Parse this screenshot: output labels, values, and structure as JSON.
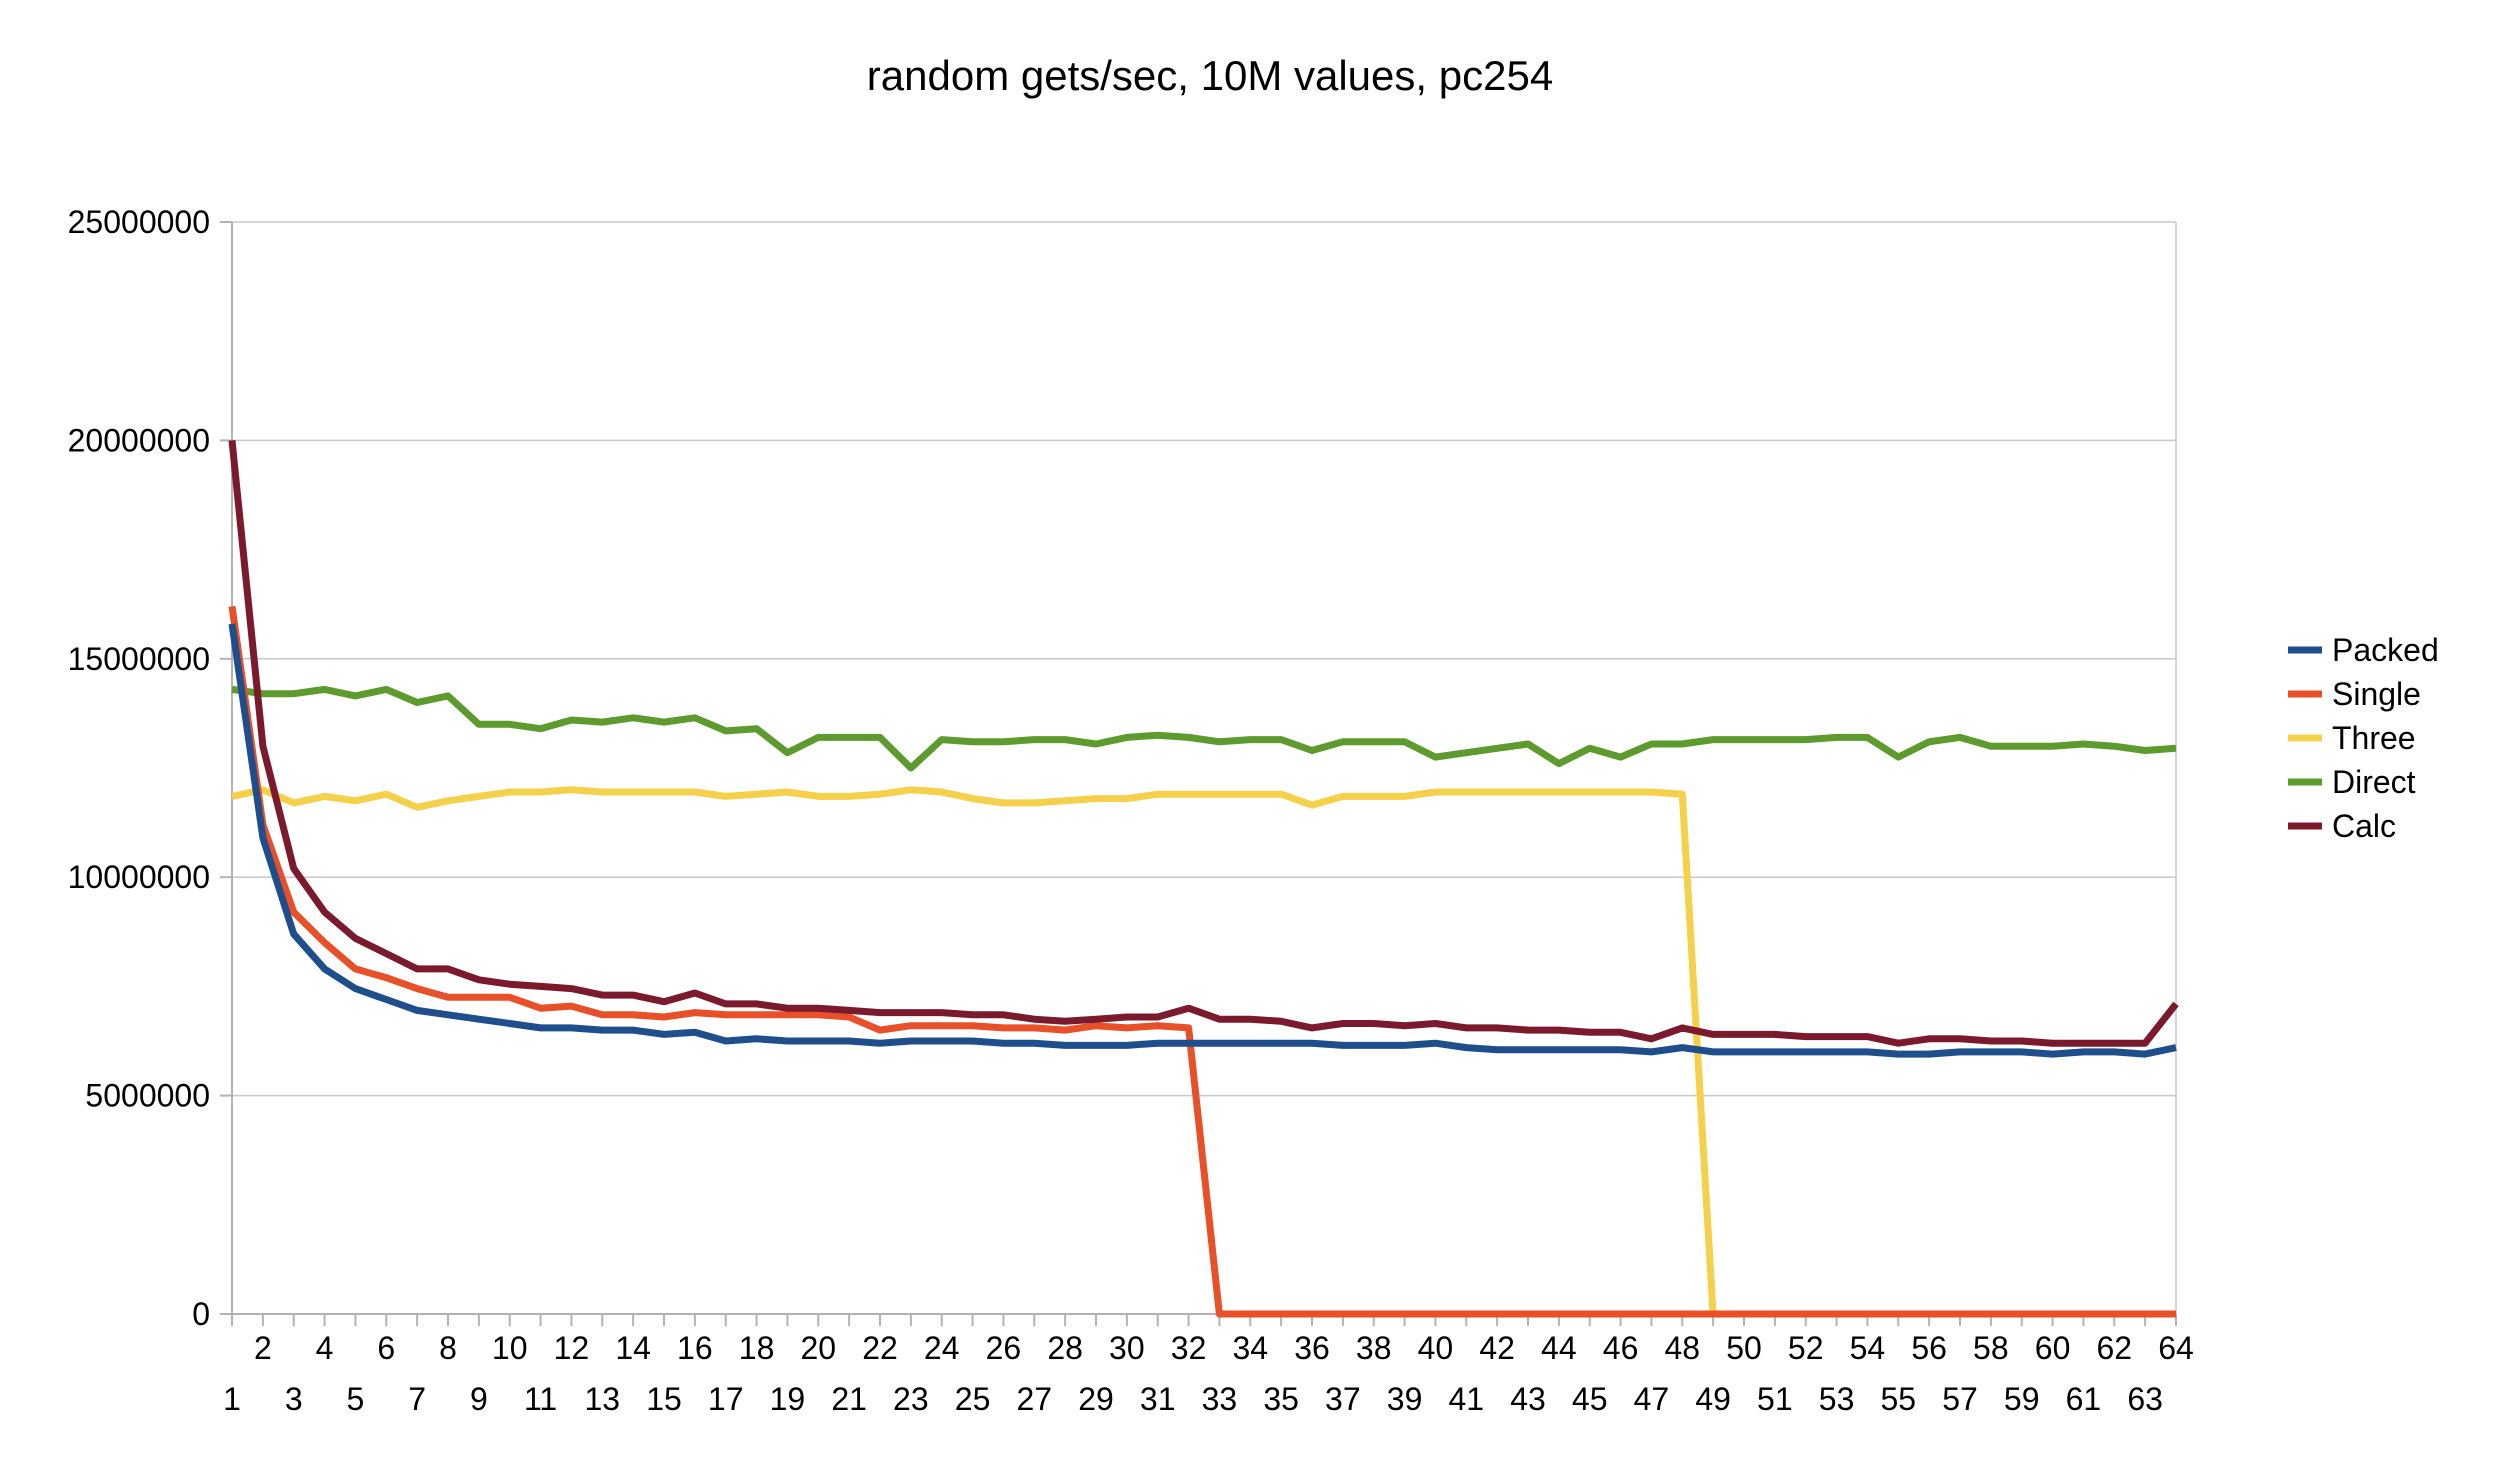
{
  "chart_data": {
    "type": "line",
    "title": "random gets/sec, 10M values, pc254",
    "xlabel": "",
    "ylabel": "",
    "ylim": [
      0,
      25000000
    ],
    "yticks": [
      "0",
      "5000000",
      "10000000",
      "15000000",
      "20000000",
      "25000000"
    ],
    "grid": true,
    "legend_position": "right",
    "x": [
      1,
      2,
      3,
      4,
      5,
      6,
      7,
      8,
      9,
      10,
      11,
      12,
      13,
      14,
      15,
      16,
      17,
      18,
      19,
      20,
      21,
      22,
      23,
      24,
      25,
      26,
      27,
      28,
      29,
      30,
      31,
      32,
      33,
      34,
      35,
      36,
      37,
      38,
      39,
      40,
      41,
      42,
      43,
      44,
      45,
      46,
      47,
      48,
      49,
      50,
      51,
      52,
      53,
      54,
      55,
      56,
      57,
      58,
      59,
      60,
      61,
      62,
      63,
      64
    ],
    "series": [
      {
        "name": "Packed",
        "color": "#1f4e8c",
        "values": [
          15800000,
          10900000,
          8700000,
          7900000,
          7450000,
          7200000,
          6950000,
          6850000,
          6750000,
          6650000,
          6550000,
          6550000,
          6500000,
          6500000,
          6400000,
          6450000,
          6250000,
          6300000,
          6250000,
          6250000,
          6250000,
          6200000,
          6250000,
          6250000,
          6250000,
          6200000,
          6200000,
          6150000,
          6150000,
          6150000,
          6200000,
          6200000,
          6200000,
          6200000,
          6200000,
          6200000,
          6150000,
          6150000,
          6150000,
          6200000,
          6100000,
          6050000,
          6050000,
          6050000,
          6050000,
          6050000,
          6000000,
          6100000,
          6000000,
          6000000,
          6000000,
          6000000,
          6000000,
          6000000,
          5950000,
          5950000,
          6000000,
          6000000,
          6000000,
          5950000,
          6000000,
          6000000,
          5950000,
          6100000
        ]
      },
      {
        "name": "Single",
        "color": "#e8502a",
        "values": [
          16200000,
          11200000,
          9200000,
          8500000,
          7900000,
          7700000,
          7450000,
          7250000,
          7250000,
          7250000,
          7000000,
          7050000,
          6850000,
          6850000,
          6800000,
          6900000,
          6850000,
          6850000,
          6850000,
          6850000,
          6800000,
          6500000,
          6600000,
          6600000,
          6600000,
          6550000,
          6550000,
          6500000,
          6600000,
          6550000,
          6600000,
          6550000,
          0,
          0,
          0,
          0,
          0,
          0,
          0,
          0,
          0,
          0,
          0,
          0,
          0,
          0,
          0,
          0,
          0,
          0,
          0,
          0,
          0,
          0,
          0,
          0,
          0,
          0,
          0,
          0,
          0,
          0,
          0,
          0
        ]
      },
      {
        "name": "Three",
        "color": "#f5d04a",
        "values": [
          11850000,
          12000000,
          11700000,
          11850000,
          11750000,
          11900000,
          11600000,
          11750000,
          11850000,
          11950000,
          11950000,
          12000000,
          11950000,
          11950000,
          11950000,
          11950000,
          11850000,
          11900000,
          11950000,
          11850000,
          11850000,
          11900000,
          12000000,
          11950000,
          11800000,
          11700000,
          11700000,
          11750000,
          11800000,
          11800000,
          11900000,
          11900000,
          11900000,
          11900000,
          11900000,
          11650000,
          11850000,
          11850000,
          11850000,
          11950000,
          11950000,
          11950000,
          11950000,
          11950000,
          11950000,
          11950000,
          11950000,
          11900000,
          0,
          0,
          0,
          0,
          0,
          0,
          0,
          0,
          0,
          0,
          0,
          0,
          0,
          0,
          0,
          0
        ]
      },
      {
        "name": "Direct",
        "color": "#5e9b2e",
        "values": [
          14300000,
          14200000,
          14200000,
          14300000,
          14150000,
          14300000,
          14000000,
          14150000,
          13500000,
          13500000,
          13400000,
          13600000,
          13550000,
          13650000,
          13550000,
          13650000,
          13350000,
          13400000,
          12850000,
          13200000,
          13200000,
          13200000,
          12500000,
          13150000,
          13100000,
          13100000,
          13150000,
          13150000,
          13050000,
          13200000,
          13250000,
          13200000,
          13100000,
          13150000,
          13150000,
          12900000,
          13100000,
          13100000,
          13100000,
          12750000,
          12850000,
          12950000,
          13050000,
          12600000,
          12950000,
          12750000,
          13050000,
          13050000,
          13150000,
          13150000,
          13150000,
          13150000,
          13200000,
          13200000,
          12750000,
          13100000,
          13200000,
          13000000,
          13000000,
          13000000,
          13050000,
          13000000,
          12900000,
          12950000
        ]
      },
      {
        "name": "Calc",
        "color": "#7b1a2c",
        "values": [
          20000000,
          13000000,
          10200000,
          9200000,
          8600000,
          8250000,
          7900000,
          7900000,
          7650000,
          7550000,
          7500000,
          7450000,
          7300000,
          7300000,
          7150000,
          7350000,
          7100000,
          7100000,
          7000000,
          7000000,
          6950000,
          6900000,
          6900000,
          6900000,
          6850000,
          6850000,
          6750000,
          6700000,
          6750000,
          6800000,
          6800000,
          7000000,
          6750000,
          6750000,
          6700000,
          6550000,
          6650000,
          6650000,
          6600000,
          6650000,
          6550000,
          6550000,
          6500000,
          6500000,
          6450000,
          6450000,
          6300000,
          6550000,
          6400000,
          6400000,
          6400000,
          6350000,
          6350000,
          6350000,
          6200000,
          6300000,
          6300000,
          6250000,
          6250000,
          6200000,
          6200000,
          6200000,
          6200000,
          7100000
        ]
      }
    ]
  }
}
